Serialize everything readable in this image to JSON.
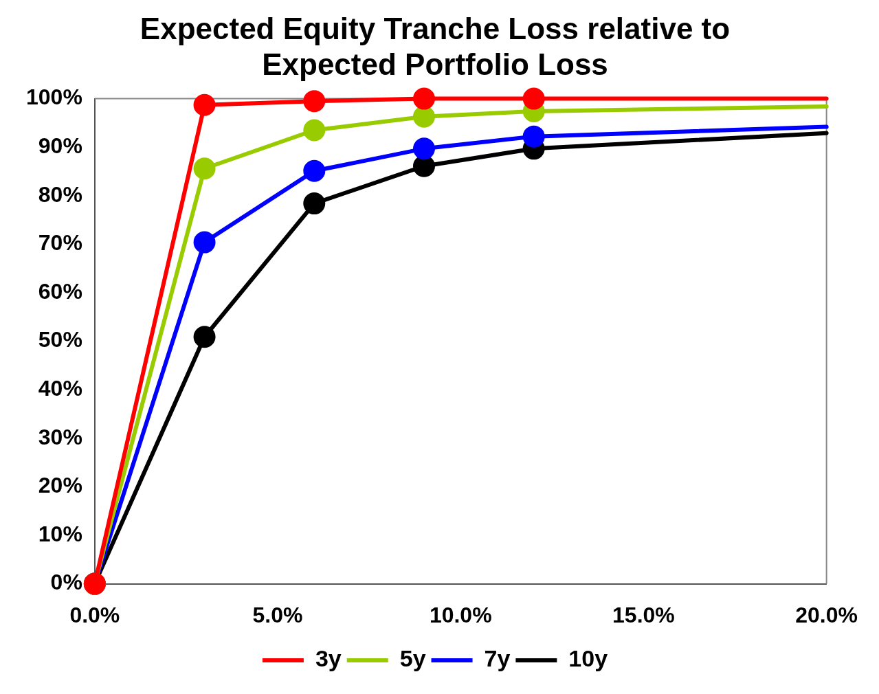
{
  "chart_data": {
    "type": "line",
    "title": "Expected Equity Tranche Loss relative to Expected Portfolio Loss",
    "x": [
      0,
      3,
      6,
      9,
      12,
      20
    ],
    "xlim": [
      0,
      20
    ],
    "xticks": [
      {
        "value": 0,
        "label": "0.0%"
      },
      {
        "value": 5,
        "label": "5.0%"
      },
      {
        "value": 10,
        "label": "10.0%"
      },
      {
        "value": 15,
        "label": "15.0%"
      },
      {
        "value": 20,
        "label": "20.0%"
      }
    ],
    "ylim": [
      0,
      100
    ],
    "yticks": [
      {
        "value": 0,
        "label": "0%"
      },
      {
        "value": 10,
        "label": "10%"
      },
      {
        "value": 20,
        "label": "20%"
      },
      {
        "value": 30,
        "label": "30%"
      },
      {
        "value": 40,
        "label": "40%"
      },
      {
        "value": 50,
        "label": "50%"
      },
      {
        "value": 60,
        "label": "60%"
      },
      {
        "value": 70,
        "label": "70%"
      },
      {
        "value": 80,
        "label": "80%"
      },
      {
        "value": 90,
        "label": "90%"
      },
      {
        "value": 100,
        "label": "100%"
      }
    ],
    "series": [
      {
        "name": "3y",
        "color": "#ff0000",
        "values": [
          0,
          98.7,
          99.5,
          100,
          100,
          100
        ]
      },
      {
        "name": "5y",
        "color": "#99cc00",
        "values": [
          0,
          85.6,
          93.5,
          96.3,
          97.4,
          98.4
        ]
      },
      {
        "name": "7y",
        "color": "#0000ff",
        "values": [
          0,
          70.4,
          85.1,
          89.7,
          92.2,
          94.2
        ]
      },
      {
        "name": "10y",
        "color": "#000000",
        "values": [
          0,
          50.9,
          78.4,
          86.1,
          89.7,
          92.9
        ]
      }
    ],
    "grid": false,
    "legend": "bottom",
    "marker": "circle",
    "line_style": "solid"
  }
}
